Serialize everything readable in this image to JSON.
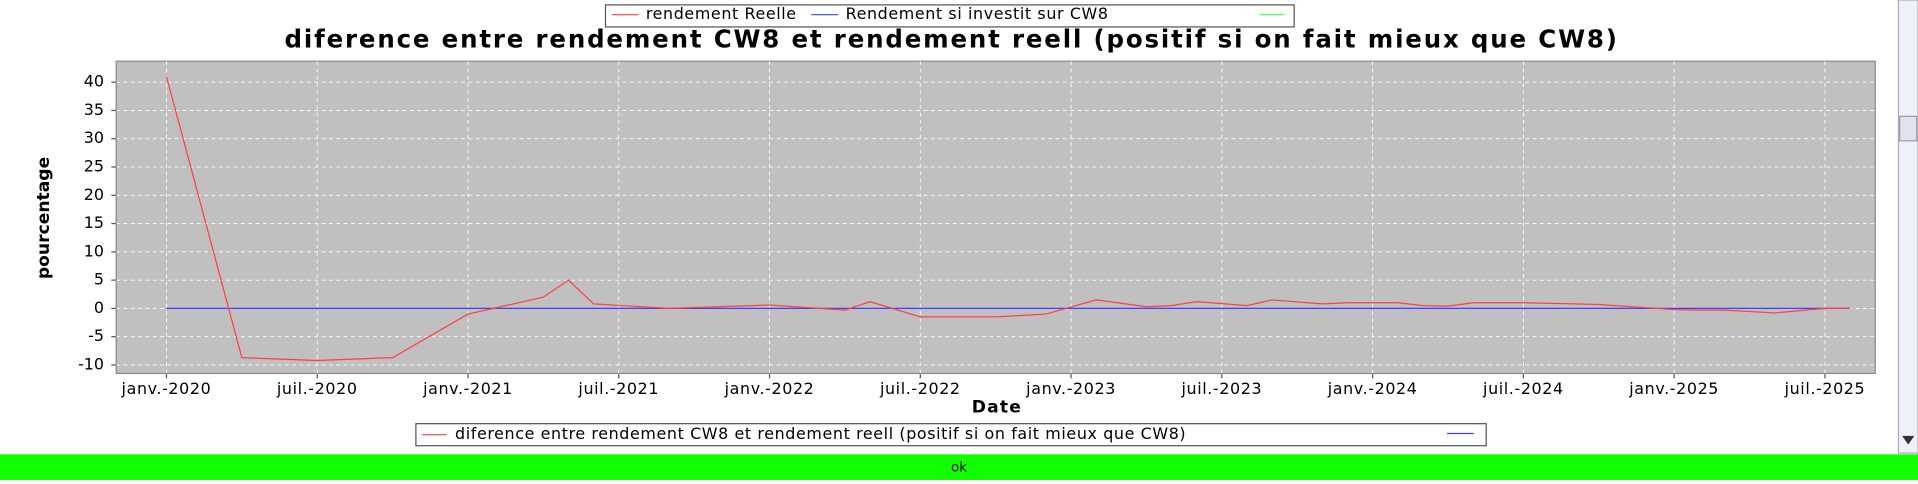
{
  "chart_data": {
    "type": "line",
    "title": "diference entre rendement CW8 et rendement reell (positif si on fait mieux que CW8)",
    "x_label": "Date",
    "y_label": "pourcentage",
    "x": [
      "2020-01",
      "2020-04",
      "2020-07",
      "2020-10",
      "2021-01",
      "2021-04",
      "2021-05",
      "2021-06",
      "2021-09",
      "2022-01",
      "2022-04",
      "2022-05",
      "2022-07",
      "2022-10",
      "2022-12",
      "2023-02",
      "2023-04",
      "2023-05",
      "2023-06",
      "2023-08",
      "2023-09",
      "2023-11",
      "2023-12",
      "2024-02",
      "2024-03",
      "2024-04",
      "2024-05",
      "2024-07",
      "2024-09",
      "2024-10",
      "2025-01",
      "2025-02",
      "2025-03",
      "2025-05",
      "2025-07",
      "2025-08"
    ],
    "series": [
      {
        "name": "diference entre rendement CW8 et rendement reell (positif si on fait mieux que CW8)",
        "color": "#ff4040",
        "values": [
          41,
          -8.7,
          -9.2,
          -8.7,
          -1,
          2,
          5,
          0.8,
          0,
          0.6,
          -0.3,
          1.2,
          -1.5,
          -1.5,
          -1,
          1.5,
          0.3,
          0.5,
          1.2,
          0.5,
          1.5,
          0.8,
          1,
          1,
          0.5,
          0.4,
          1,
          1,
          0.8,
          0.7,
          -0.2,
          -0.3,
          -0.3,
          -0.8,
          0,
          0
        ]
      },
      {
        "color": "#4040ff",
        "values": [
          0,
          0,
          0,
          0,
          0,
          0,
          0,
          0,
          0,
          0,
          0,
          0,
          0,
          0,
          0,
          0,
          0,
          0,
          0,
          0,
          0,
          0,
          0,
          0,
          0,
          0,
          0,
          0,
          0,
          0,
          0,
          0,
          0,
          0,
          0,
          0
        ]
      }
    ],
    "xlim": [
      "2019-11",
      "2025-09"
    ],
    "xticks": [
      {
        "value": "2020-01",
        "label": "janv.-2020"
      },
      {
        "value": "2020-07",
        "label": "juil.-2020"
      },
      {
        "value": "2021-01",
        "label": "janv.-2021"
      },
      {
        "value": "2021-07",
        "label": "juil.-2021"
      },
      {
        "value": "2022-01",
        "label": "janv.-2022"
      },
      {
        "value": "2022-07",
        "label": "juil.-2022"
      },
      {
        "value": "2023-01",
        "label": "janv.-2023"
      },
      {
        "value": "2023-07",
        "label": "juil.-2023"
      },
      {
        "value": "2024-01",
        "label": "janv.-2024"
      },
      {
        "value": "2024-07",
        "label": "juil.-2024"
      },
      {
        "value": "2025-01",
        "label": "janv.-2025"
      },
      {
        "value": "2025-07",
        "label": "juil.-2025"
      }
    ],
    "ylim": [
      -11.5,
      43.7
    ],
    "yticks": [
      -10,
      -5,
      0,
      5,
      10,
      15,
      20,
      25,
      30,
      35,
      40
    ],
    "grid": true
  },
  "top_legend": [
    {
      "name": "rendement Reelle",
      "color": "#ff4040"
    },
    {
      "name": "Rendement si investit sur CW8",
      "color": "#4040ff"
    }
  ],
  "button": "ok"
}
